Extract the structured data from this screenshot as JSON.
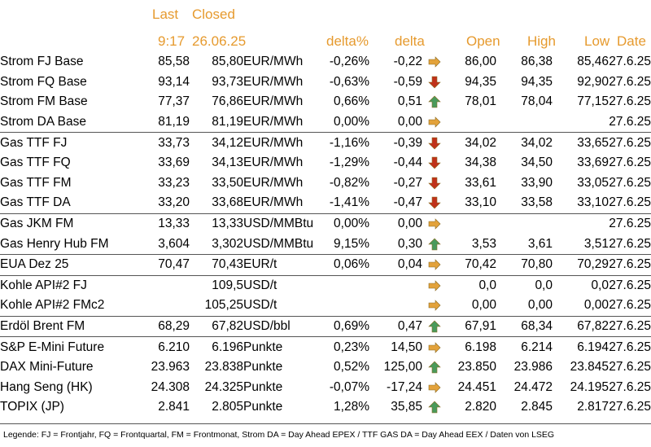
{
  "colors": {
    "header": "#e69a2e",
    "up": "#4a9a5b",
    "down": "#c0311a",
    "flat": "#e3a23a"
  },
  "header": {
    "last": "Last",
    "closed": "Closed",
    "time": "9:17",
    "closed_date": "26.06.25",
    "delta_pct": "delta%",
    "delta": "delta",
    "open": "Open",
    "high": "High",
    "low": "Low",
    "date": "Date"
  },
  "rows": [
    {
      "name": "Strom FJ Base",
      "last": "85,58",
      "closed": "85,80",
      "unit": "EUR/MWh",
      "pct": "-0,26%",
      "delta": "-0,22",
      "trend": "flat",
      "open": "86,00",
      "high": "86,38",
      "low": "85,46",
      "date": "27.6.25"
    },
    {
      "name": "Strom FQ Base",
      "last": "93,14",
      "closed": "93,73",
      "unit": "EUR/MWh",
      "pct": "-0,63%",
      "delta": "-0,59",
      "trend": "down",
      "open": "94,35",
      "high": "94,35",
      "low": "92,90",
      "date": "27.6.25"
    },
    {
      "name": "Strom FM Base",
      "last": "77,37",
      "closed": "76,86",
      "unit": "EUR/MWh",
      "pct": "0,66%",
      "delta": "0,51",
      "trend": "up",
      "open": "78,01",
      "high": "78,04",
      "low": "77,15",
      "date": "27.6.25"
    },
    {
      "name": "Strom DA Base",
      "last": "81,19",
      "closed": "81,19",
      "unit": "EUR/MWh",
      "pct": "0,00%",
      "delta": "0,00",
      "trend": "flat",
      "open": "",
      "high": "",
      "low": "",
      "date": "27.6.25"
    },
    {
      "name": "Gas TTF FJ",
      "last": "33,73",
      "closed": "34,12",
      "unit": "EUR/MWh",
      "pct": "-1,16%",
      "delta": "-0,39",
      "trend": "down",
      "open": "34,02",
      "high": "34,02",
      "low": "33,65",
      "date": "27.6.25",
      "sep": true
    },
    {
      "name": "Gas TTF FQ",
      "last": "33,69",
      "closed": "34,13",
      "unit": "EUR/MWh",
      "pct": "-1,29%",
      "delta": "-0,44",
      "trend": "down",
      "open": "34,38",
      "high": "34,50",
      "low": "33,69",
      "date": "27.6.25"
    },
    {
      "name": "Gas TTF FM",
      "last": "33,23",
      "closed": "33,50",
      "unit": "EUR/MWh",
      "pct": "-0,82%",
      "delta": "-0,27",
      "trend": "down",
      "open": "33,61",
      "high": "33,90",
      "low": "33,05",
      "date": "27.6.25"
    },
    {
      "name": "Gas TTF DA",
      "last": "33,20",
      "closed": "33,68",
      "unit": "EUR/MWh",
      "pct": "-1,41%",
      "delta": "-0,47",
      "trend": "down",
      "open": "33,10",
      "high": "33,58",
      "low": "33,10",
      "date": "27.6.25"
    },
    {
      "name": "Gas JKM FM",
      "last": "13,33",
      "closed": "13,33",
      "unit": "USD/MMBtu",
      "pct": "0,00%",
      "delta": "0,00",
      "trend": "flat",
      "open": "",
      "high": "",
      "low": "",
      "date": "27.6.25",
      "sep": true
    },
    {
      "name": "Gas Henry Hub FM",
      "last": "3,604",
      "closed": "3,302",
      "unit": "USD/MMBtu",
      "pct": "9,15%",
      "delta": "0,30",
      "trend": "up",
      "open": "3,53",
      "high": "3,61",
      "low": "3,51",
      "date": "27.6.25"
    },
    {
      "name": "EUA Dez 25",
      "last": "70,47",
      "closed": "70,43",
      "unit": "EUR/t",
      "pct": "0,06%",
      "delta": "0,04",
      "trend": "flat",
      "open": "70,42",
      "high": "70,80",
      "low": "70,29",
      "date": "27.6.25",
      "sep": true
    },
    {
      "name": "Kohle API#2 FJ",
      "last": "",
      "closed": "109,5",
      "unit": "USD/t",
      "pct": "",
      "delta": "",
      "trend": "flat",
      "open": "0,0",
      "high": "0,0",
      "low": "0,0",
      "date": "27.6.25",
      "sep": true
    },
    {
      "name": "Kohle API#2 FMc2",
      "last": "",
      "closed": "105,25",
      "unit": "USD/t",
      "pct": "",
      "delta": "",
      "trend": "flat",
      "open": "0,00",
      "high": "0,00",
      "low": "0,00",
      "date": "27.6.25"
    },
    {
      "name": "Erdöl Brent FM",
      "last": "68,29",
      "closed": "67,82",
      "unit": "USD/bbl",
      "pct": "0,69%",
      "delta": "0,47",
      "trend": "up",
      "open": "67,91",
      "high": "68,34",
      "low": "67,82",
      "date": "27.6.25",
      "sep": true
    },
    {
      "name": "S&P E-Mini Future",
      "last": "6.210",
      "closed": "6.196",
      "unit": "Punkte",
      "pct": "0,23%",
      "delta": "14,50",
      "trend": "flat",
      "open": "6.198",
      "high": "6.214",
      "low": "6.194",
      "date": "27.6.25",
      "sep": true
    },
    {
      "name": "DAX Mini-Future",
      "last": "23.963",
      "closed": "23.838",
      "unit": "Punkte",
      "pct": "0,52%",
      "delta": "125,00",
      "trend": "up",
      "open": "23.850",
      "high": "23.986",
      "low": "23.845",
      "date": "27.6.25"
    },
    {
      "name": "Hang Seng (HK)",
      "last": "24.308",
      "closed": "24.325",
      "unit": "Punkte",
      "pct": "-0,07%",
      "delta": "-17,24",
      "trend": "flat",
      "open": "24.451",
      "high": "24.472",
      "low": "24.195",
      "date": "27.6.25"
    },
    {
      "name": "TOPIX (JP)",
      "last": "2.841",
      "closed": "2.805",
      "unit": "Punkte",
      "pct": "1,28%",
      "delta": "35,85",
      "trend": "up",
      "open": "2.820",
      "high": "2.845",
      "low": "2.817",
      "date": "27.6.25"
    }
  ],
  "legend": "Legende: FJ = Frontjahr, FQ = Frontquartal, FM = Frontmonat, Strom DA = Day Ahead EPEX / TTF GAS DA = Day Ahead EEX / Daten von LSEG"
}
